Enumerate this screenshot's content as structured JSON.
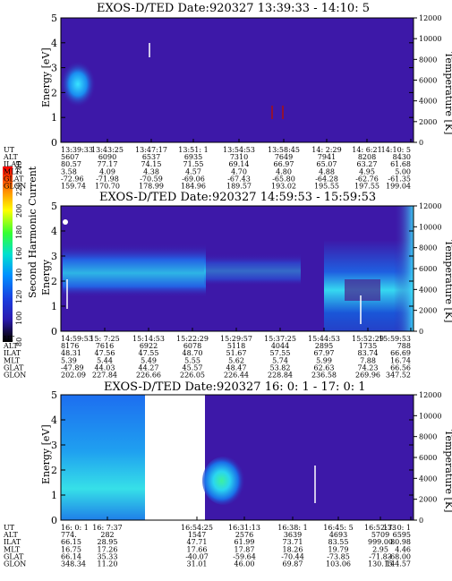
{
  "colorbar": {
    "label": "Second Harmonic Current",
    "ticks": [
      "240",
      "220",
      "200",
      "180",
      "160",
      "140",
      "120",
      "100",
      "80"
    ]
  },
  "row_labels": [
    "UT",
    "ALT",
    "ILAT",
    "MLT",
    "GLAT",
    "GLON"
  ],
  "chart_data": [
    {
      "type": "heatmap",
      "title": "EXOS-D/TED   Date:920327   13:39:33 - 14:10: 5",
      "ylabel_left": "Energy [eV]",
      "ylabel_right": "Temperature [K]",
      "y_left_ticks": [
        "0",
        "1",
        "2",
        "3",
        "4",
        "5"
      ],
      "y_right_ticks": [
        "0",
        "2000",
        "4000",
        "6000",
        "8000",
        "10000",
        "12000"
      ],
      "ylim_left": [
        0,
        5
      ],
      "ylim_right": [
        0,
        12000
      ],
      "background_color": "#3d18a8",
      "columns": [
        [
          "13:39:33",
          "5607",
          "80.57",
          "3.58",
          "-72.96",
          "159.74"
        ],
        [
          "13:43:25",
          "6090",
          "77.17",
          "4.09",
          "-71.98",
          "170.70"
        ],
        [
          "13:47:17",
          "6537",
          "74.15",
          "4.38",
          "-70.59",
          "178.99"
        ],
        [
          "13:51: 1",
          "6935",
          "71.55",
          "4.57",
          "-69.06",
          "184.96"
        ],
        [
          "13:54:53",
          "7310",
          "69.14",
          "4.70",
          "-67.43",
          "189.57"
        ],
        [
          "13:58:45",
          "7649",
          "66.97",
          "4.80",
          "-65.80",
          "193.02"
        ],
        [
          "14: 2:29",
          "7941",
          "65.07",
          "4.88",
          "-64.28",
          "195.55"
        ],
        [
          "14: 6:21",
          "8208",
          "63.27",
          "4.95",
          "-62.76",
          "197.55"
        ],
        [
          "14:10: 5",
          "8430",
          "61.68",
          "5.00",
          "-61.35",
          "199.04"
        ]
      ]
    },
    {
      "type": "heatmap",
      "title": "EXOS-D/TED   Date:920327   14:59:53 - 15:59:53",
      "ylabel_left": "Energy",
      "ylabel_right": "Temperature [K]",
      "y_left_ticks": [
        "0",
        "1",
        "2",
        "3",
        "4",
        "5"
      ],
      "y_right_ticks": [
        "0",
        "2000",
        "4000",
        "6000",
        "8000",
        "10000",
        "12000"
      ],
      "ylim_left": [
        0,
        5
      ],
      "ylim_right": [
        0,
        12000
      ],
      "background_color": "#3d18a8",
      "columns": [
        [
          "14:59:53",
          "8176",
          "48.31",
          "5.39",
          "-47.89",
          "202.09"
        ],
        [
          "15: 7:25",
          "7616",
          "47.56",
          "5.44",
          "44.03",
          "227.84"
        ],
        [
          "15:14:53",
          "6922",
          "47.55",
          "5.49",
          "44.27",
          "226.66"
        ],
        [
          "15:22:29",
          "6078",
          "48.70",
          "5.55",
          "45.57",
          "226.05"
        ],
        [
          "15:29:57",
          "5118",
          "51.67",
          "5.62",
          "48.47",
          "226.44"
        ],
        [
          "15:37:25",
          "4044",
          "57.55",
          "5.74",
          "53.82",
          "228.84"
        ],
        [
          "15:44:53",
          "2895",
          "67.97",
          "5.99",
          "62.63",
          "236.58"
        ],
        [
          "15:52:29",
          "1735",
          "83.74",
          "7.88",
          "74.23",
          "269.96"
        ],
        [
          "15:59:53",
          "788",
          "66.69",
          "16.74",
          "66.56",
          "347.52"
        ]
      ]
    },
    {
      "type": "heatmap",
      "title": "EXOS-D/TED   Date:920327   16: 0: 1 - 17: 0: 1",
      "ylabel_left": "Energy [eV]",
      "ylabel_right": "Temperature [K]",
      "y_left_ticks": [
        "0",
        "1",
        "2",
        "3",
        "4",
        "5"
      ],
      "y_right_ticks": [
        "0",
        "2000",
        "4000",
        "6000",
        "8000",
        "10000",
        "12000"
      ],
      "ylim_left": [
        0,
        5
      ],
      "ylim_right": [
        0,
        12000
      ],
      "background_color": "#3d18a8",
      "columns": [
        [
          "16: 0: 1",
          "774.",
          "66.15",
          "16.75",
          "66.14",
          "348.34"
        ],
        [
          "16: 7:37",
          "282",
          "28.95",
          "17.26",
          "35.33",
          "11.20"
        ],
        [
          "16:54:25",
          "1547",
          "47.71",
          "17.66",
          "-40.07",
          "31.01"
        ],
        [
          "16:31:13",
          "2576",
          "61.99",
          "17.87",
          "-59.64",
          "46.00"
        ],
        [
          "16:38: 1",
          "3639",
          "73.71",
          "18.26",
          "-70.44",
          "69.87"
        ],
        [
          "16:45: 5",
          "4693",
          "83.55",
          "19.79",
          "-73.85",
          "103.06"
        ],
        [
          "16:52:33",
          "5709",
          "999.00",
          "2.95",
          "-71.83",
          "130.15"
        ],
        [
          "17: 0: 1",
          "6595",
          "80.98",
          "4.46",
          "-68.00",
          "144.57"
        ]
      ]
    }
  ]
}
